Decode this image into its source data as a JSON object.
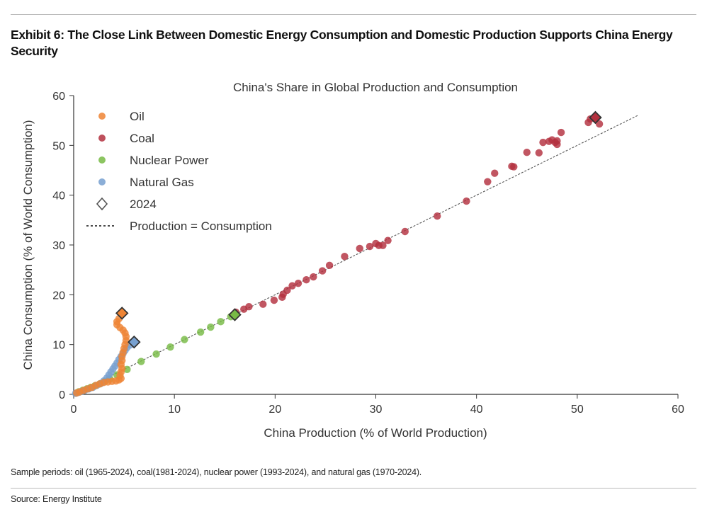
{
  "header": {
    "title": "Exhibit 6: The Close Link Between Domestic Energy Consumption and Domestic Production Supports China Energy Security"
  },
  "footer": {
    "note": "Sample periods: oil (1965-2024), coal(1981-2024), nuclear power (1993-2024), and natural gas (1970-2024).",
    "source": "Source: Energy Institute"
  },
  "chart_data": {
    "type": "scatter",
    "title": "China's Share in Global Production and Consumption",
    "xlabel": "China Production (% of World Production)",
    "ylabel": "China Consumption (% of World Consumption)",
    "xlim": [
      0,
      60
    ],
    "ylim": [
      0,
      60
    ],
    "xticks": [
      "0",
      "10",
      "20",
      "30",
      "40",
      "50",
      "60"
    ],
    "yticks": [
      "0",
      "10",
      "20",
      "30",
      "40",
      "50",
      "60"
    ],
    "grid": false,
    "legend_position": "top-left",
    "legend": {
      "oil": "Oil",
      "coal": "Coal",
      "nuclear": "Nuclear Power",
      "gas": "Natural Gas",
      "marker2024": "2024",
      "line": "Production = Consumption"
    },
    "reference_line": {
      "name": "Production = Consumption",
      "from": [
        0,
        0
      ],
      "to": [
        56,
        56
      ]
    },
    "series": [
      {
        "key": "oil",
        "name": "Oil",
        "color": "#ee8434",
        "points": [
          [
            0.3,
            0.3
          ],
          [
            0.6,
            0.5
          ],
          [
            1,
            0.8
          ],
          [
            1.4,
            1.1
          ],
          [
            1.8,
            1.4
          ],
          [
            2.2,
            1.8
          ],
          [
            2.6,
            2.1
          ],
          [
            3.0,
            2.4
          ],
          [
            3.4,
            2.5
          ],
          [
            3.8,
            2.6
          ],
          [
            4.2,
            2.7
          ],
          [
            4.5,
            2.9
          ],
          [
            4.7,
            3.2
          ],
          [
            4.6,
            3.8
          ],
          [
            4.7,
            4.5
          ],
          [
            4.8,
            5.2
          ],
          [
            4.7,
            6
          ],
          [
            4.8,
            6.8
          ],
          [
            4.8,
            7.6
          ],
          [
            4.9,
            8.4
          ],
          [
            5.0,
            9.2
          ],
          [
            5.1,
            10
          ],
          [
            5.2,
            10.8
          ],
          [
            5.2,
            11.6
          ],
          [
            5.1,
            12.3
          ],
          [
            4.9,
            12.9
          ],
          [
            4.6,
            13.4
          ],
          [
            4.3,
            14.0
          ],
          [
            4.3,
            14.6
          ],
          [
            4.5,
            15.2
          ]
        ],
        "p2024": [
          4.8,
          16.3
        ]
      },
      {
        "key": "coal",
        "name": "Coal",
        "color": "#b3313f",
        "points": [
          [
            16.1,
            16.5
          ],
          [
            16.9,
            17.1
          ],
          [
            17.4,
            17.6
          ],
          [
            18.8,
            18.1
          ],
          [
            19.9,
            18.9
          ],
          [
            20.7,
            19.5
          ],
          [
            20.8,
            20.1
          ],
          [
            21.2,
            20.9
          ],
          [
            21.7,
            21.8
          ],
          [
            22.3,
            22.3
          ],
          [
            23.1,
            23.0
          ],
          [
            23.8,
            23.6
          ],
          [
            24.7,
            24.8
          ],
          [
            25.4,
            25.9
          ],
          [
            26.9,
            27.7
          ],
          [
            28.4,
            29.3
          ],
          [
            29.4,
            29.7
          ],
          [
            30.0,
            30.3
          ],
          [
            30.3,
            29.9
          ],
          [
            30.7,
            29.9
          ],
          [
            31.2,
            30.9
          ],
          [
            32.9,
            32.7
          ],
          [
            36.1,
            35.8
          ],
          [
            39.0,
            38.8
          ],
          [
            41.1,
            42.7
          ],
          [
            41.8,
            44.4
          ],
          [
            43.5,
            45.8
          ],
          [
            43.7,
            45.7
          ],
          [
            45.0,
            48.6
          ],
          [
            46.2,
            48.5
          ],
          [
            46.6,
            50.6
          ],
          [
            47.2,
            50.8
          ],
          [
            47.5,
            51.1
          ],
          [
            47.8,
            50.6
          ],
          [
            48.0,
            50.2
          ],
          [
            48.0,
            50.9
          ],
          [
            48.4,
            52.6
          ],
          [
            51.1,
            54.6
          ],
          [
            51.3,
            55.3
          ],
          [
            52.2,
            54.3
          ]
        ],
        "p2024": [
          51.8,
          55.6
        ]
      },
      {
        "key": "nuclear",
        "name": "Nuclear Power",
        "color": "#78bb45",
        "points": [
          [
            0.5,
            0.5
          ],
          [
            0.9,
            0.8
          ],
          [
            1.3,
            1.1
          ],
          [
            1.7,
            1.4
          ],
          [
            2.1,
            1.7
          ],
          [
            2.6,
            2.1
          ],
          [
            3.1,
            2.6
          ],
          [
            3.6,
            3.1
          ],
          [
            4.3,
            3.9
          ],
          [
            5.3,
            5.0
          ],
          [
            6.7,
            6.6
          ],
          [
            8.2,
            8.1
          ],
          [
            9.6,
            9.5
          ],
          [
            11.0,
            11.0
          ],
          [
            12.6,
            12.5
          ],
          [
            13.6,
            13.5
          ],
          [
            14.6,
            14.6
          ],
          [
            15.6,
            15.6
          ]
        ],
        "p2024": [
          16.0,
          16.0
        ]
      },
      {
        "key": "gas",
        "name": "Natural Gas",
        "color": "#77a0d0",
        "points": [
          [
            0.2,
            0.2
          ],
          [
            0.5,
            0.4
          ],
          [
            0.8,
            0.6
          ],
          [
            1.1,
            0.8
          ],
          [
            1.5,
            1.1
          ],
          [
            1.9,
            1.4
          ],
          [
            2.3,
            1.8
          ],
          [
            2.7,
            2.2
          ],
          [
            3.0,
            2.7
          ],
          [
            3.3,
            3.3
          ],
          [
            3.5,
            3.9
          ],
          [
            3.7,
            4.5
          ],
          [
            3.9,
            5.1
          ],
          [
            4.1,
            5.7
          ],
          [
            4.3,
            6.3
          ],
          [
            4.5,
            7.0
          ],
          [
            4.7,
            7.6
          ],
          [
            4.9,
            8.2
          ],
          [
            5.1,
            8.8
          ],
          [
            5.3,
            9.4
          ],
          [
            5.6,
            9.9
          ]
        ],
        "p2024": [
          6.0,
          10.5
        ]
      }
    ]
  }
}
